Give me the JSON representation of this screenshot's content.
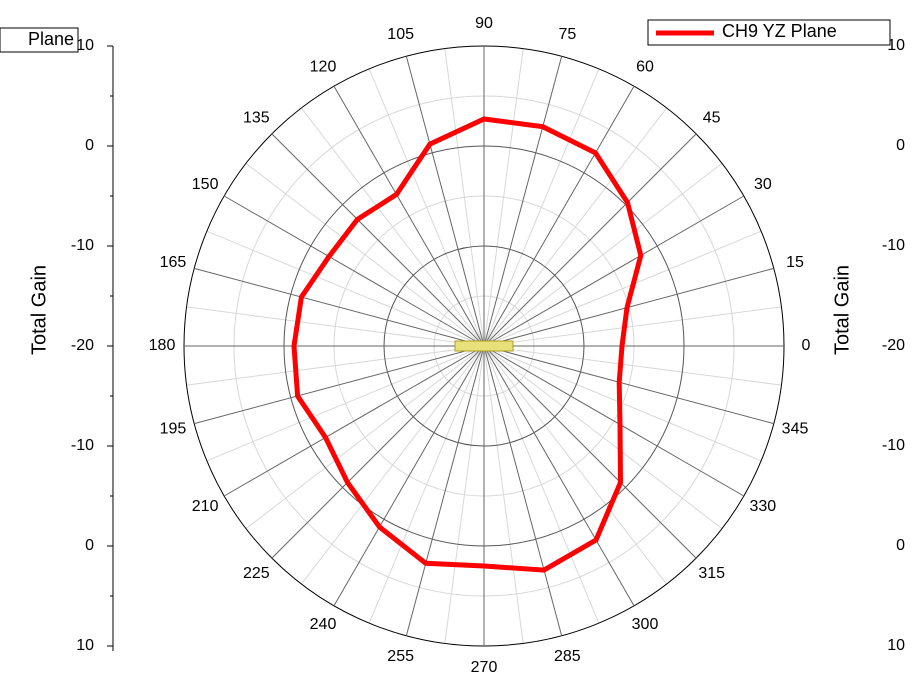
{
  "chart_data": {
    "type": "polar",
    "theta": [
      0,
      15,
      30,
      45,
      60,
      75,
      90,
      105,
      120,
      135,
      150,
      165,
      180,
      195,
      210,
      225,
      240,
      255,
      270,
      285,
      300,
      315,
      330,
      345
    ],
    "series": [
      {
        "name": "CH9 YZ Plane",
        "color": "#ff0000",
        "values": [
          -6.2,
          -5.2,
          -1.9,
          0.3,
          2.3,
          2.7,
          2.7,
          0.9,
          -2.5,
          -2.1,
          -2.1,
          -1.1,
          -1.0,
          -0.7,
          -1.7,
          -0.7,
          0.9,
          2.5,
          2.0,
          3.2,
          2.4,
          -0.7,
          -4.3,
          -6.0
        ]
      }
    ],
    "rlim": [
      -20,
      10
    ],
    "rticks": [
      -20,
      -10,
      0,
      10
    ],
    "r_label": "Total Gain",
    "grid": true
  },
  "left_panel": {
    "legend": "Plane"
  },
  "right_panel": {
    "r_label": "Total Gain",
    "rlim": [
      -20,
      10
    ],
    "rticks": [
      -20,
      -10,
      0,
      10
    ]
  }
}
